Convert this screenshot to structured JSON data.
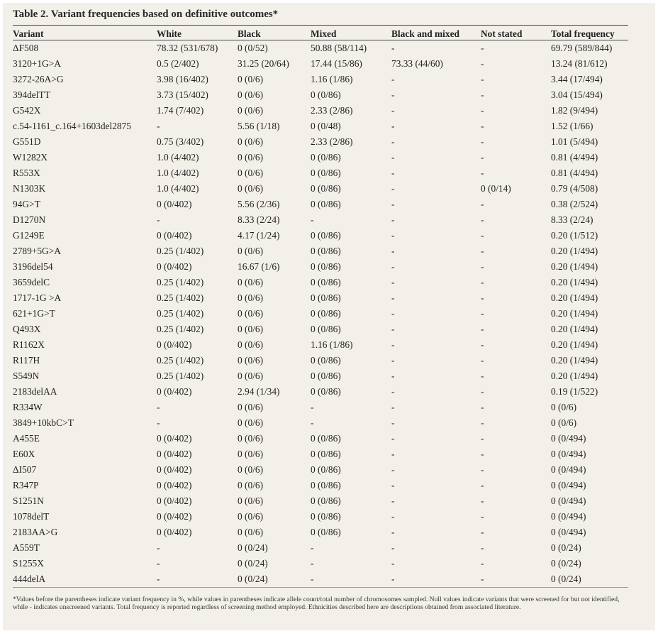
{
  "table": {
    "title": "Table 2. Variant frequencies based on definitive outcomes*",
    "headers": [
      "Variant",
      "White",
      "Black",
      "Mixed",
      "Black and mixed",
      "Not stated",
      "Total frequency"
    ],
    "rows": [
      [
        "ΔF508",
        "78.32 (531/678)",
        "0 (0/52)",
        "50.88 (58/114)",
        "-",
        "-",
        "69.79 (589/844)"
      ],
      [
        "3120+1G>A",
        "0.5 (2/402)",
        "31.25 (20/64)",
        "17.44 (15/86)",
        "73.33 (44/60)",
        "-",
        "13.24 (81/612)"
      ],
      [
        "3272-26A>G",
        "3.98 (16/402)",
        "0 (0/6)",
        "1.16 (1/86)",
        "-",
        "-",
        "3.44 (17/494)"
      ],
      [
        "394delTT",
        "3.73 (15/402)",
        "0 (0/6)",
        "0 (0/86)",
        "-",
        "-",
        "3.04 (15/494)"
      ],
      [
        "G542X",
        "1.74 (7/402)",
        "0 (0/6)",
        "2.33 (2/86)",
        "-",
        "-",
        "1.82 (9/494)"
      ],
      [
        "c.54-1161_c.164+1603del2875",
        "-",
        "5.56 (1/18)",
        "0 (0/48)",
        "-",
        "-",
        "1.52 (1/66)"
      ],
      [
        "G551D",
        "0.75 (3/402)",
        "0 (0/6)",
        "2.33 (2/86)",
        "-",
        "-",
        "1.01 (5/494)"
      ],
      [
        "W1282X",
        "1.0 (4/402)",
        "0 (0/6)",
        "0 (0/86)",
        "-",
        "-",
        "0.81 (4/494)"
      ],
      [
        "R553X",
        "1.0 (4/402)",
        "0 (0/6)",
        "0 (0/86)",
        "-",
        "-",
        "0.81 (4/494)"
      ],
      [
        "N1303K",
        "1.0 (4/402)",
        "0 (0/6)",
        "0 (0/86)",
        "-",
        "0 (0/14)",
        "0.79 (4/508)"
      ],
      [
        "94G>T",
        "0 (0/402)",
        "5.56 (2/36)",
        "0 (0/86)",
        "-",
        "-",
        "0.38 (2/524)"
      ],
      [
        "D1270N",
        "-",
        "8.33 (2/24)",
        "-",
        "-",
        "-",
        "8.33 (2/24)"
      ],
      [
        "G1249E",
        "0 (0/402)",
        "4.17 (1/24)",
        "0 (0/86)",
        "-",
        "-",
        "0.20 (1/512)"
      ],
      [
        "2789+5G>A",
        "0.25 (1/402)",
        "0 (0/6)",
        "0 (0/86)",
        "-",
        "-",
        "0.20 (1/494)"
      ],
      [
        "3196del54",
        "0 (0/402)",
        "16.67 (1/6)",
        "0 (0/86)",
        "-",
        "-",
        "0.20 (1/494)"
      ],
      [
        "3659delC",
        "0.25 (1/402)",
        "0 (0/6)",
        "0 (0/86)",
        "-",
        "-",
        "0.20 (1/494)"
      ],
      [
        "1717-1G >A",
        "0.25 (1/402)",
        "0 (0/6)",
        "0 (0/86)",
        "-",
        "-",
        "0.20 (1/494)"
      ],
      [
        "621+1G>T",
        "0.25 (1/402)",
        "0 (0/6)",
        "0 (0/86)",
        "-",
        "-",
        "0.20 (1/494)"
      ],
      [
        "Q493X",
        "0.25 (1/402)",
        "0 (0/6)",
        "0 (0/86)",
        "-",
        "-",
        "0.20 (1/494)"
      ],
      [
        "R1162X",
        "0 (0/402)",
        "0 (0/6)",
        "1.16 (1/86)",
        "-",
        "-",
        "0.20 (1/494)"
      ],
      [
        "R117H",
        "0.25 (1/402)",
        "0 (0/6)",
        "0 (0/86)",
        "-",
        "-",
        "0.20 (1/494)"
      ],
      [
        "S549N",
        "0.25 (1/402)",
        "0 (0/6)",
        "0 (0/86)",
        "-",
        "-",
        "0.20 (1/494)"
      ],
      [
        "2183delAA",
        "0 (0/402)",
        "2.94 (1/34)",
        "0 (0/86)",
        "-",
        "-",
        "0.19 (1/522)"
      ],
      [
        "R334W",
        "-",
        "0 (0/6)",
        "-",
        "-",
        "-",
        "0 (0/6)"
      ],
      [
        "3849+10kbC>T",
        "-",
        "0 (0/6)",
        "-",
        "-",
        "-",
        "0 (0/6)"
      ],
      [
        "A455E",
        "0 (0/402)",
        "0 (0/6)",
        "0 (0/86)",
        "-",
        "-",
        "0 (0/494)"
      ],
      [
        "E60X",
        "0 (0/402)",
        "0 (0/6)",
        "0 (0/86)",
        "-",
        "-",
        "0 (0/494)"
      ],
      [
        "ΔI507",
        "0 (0/402)",
        "0 (0/6)",
        "0 (0/86)",
        "-",
        "-",
        "0 (0/494)"
      ],
      [
        "R347P",
        "0 (0/402)",
        "0 (0/6)",
        "0 (0/86)",
        "-",
        "-",
        "0 (0/494)"
      ],
      [
        "S1251N",
        "0 (0/402)",
        "0 (0/6)",
        "0 (0/86)",
        "-",
        "-",
        "0 (0/494)"
      ],
      [
        "1078delT",
        "0 (0/402)",
        "0 (0/6)",
        "0 (0/86)",
        "-",
        "-",
        "0 (0/494)"
      ],
      [
        "2183AA>G",
        "0 (0/402)",
        "0 (0/6)",
        "0 (0/86)",
        "-",
        "-",
        "0 (0/494)"
      ],
      [
        "A559T",
        "-",
        "0 (0/24)",
        "-",
        "-",
        "-",
        "0 (0/24)"
      ],
      [
        "S1255X",
        "-",
        "0 (0/24)",
        "-",
        "-",
        "-",
        "0 (0/24)"
      ],
      [
        "444delA",
        "-",
        "0 (0/24)",
        "-",
        "-",
        "-",
        "0 (0/24)"
      ]
    ],
    "footnote": "*Values before the parentheses indicate variant frequency in %, while values in parentheses indicate allele count/total number of chromosomes sampled. Null values indicate variants that were screened for but not identified, while - indicates unscreened variants. Total frequency is reported regardless of screening method employed. Ethnicities described here are descriptions obtained from associated literature."
  }
}
